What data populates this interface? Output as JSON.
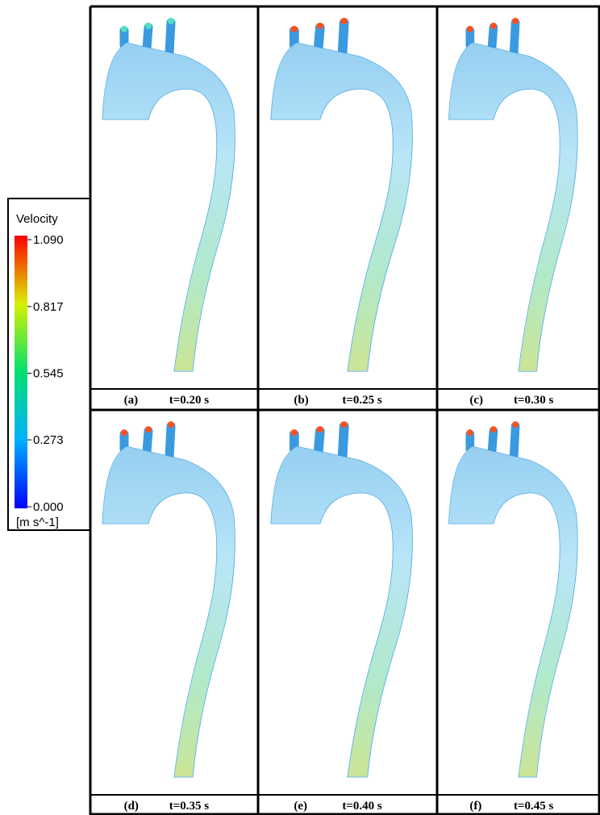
{
  "legend": {
    "title": "Velocity",
    "unit": "[m s^-1]",
    "ticks": [
      {
        "value": 1.09,
        "label": "1.090"
      },
      {
        "value": 0.817,
        "label": "0.817"
      },
      {
        "value": 0.545,
        "label": "0.545"
      },
      {
        "value": 0.273,
        "label": "0.273"
      },
      {
        "value": 0,
        "label": "0.000"
      }
    ]
  },
  "panels": [
    {
      "label": "(a)",
      "time": "t=0.20 s"
    },
    {
      "label": "(b)",
      "time": "t=0.25 s"
    },
    {
      "label": "(c)",
      "time": "t=0.30 s"
    },
    {
      "label": "(d)",
      "time": "t=0.35 s"
    },
    {
      "label": "(e)",
      "time": "t=0.40 s"
    },
    {
      "label": "(f)",
      "time": "t=0.45 s"
    }
  ]
}
